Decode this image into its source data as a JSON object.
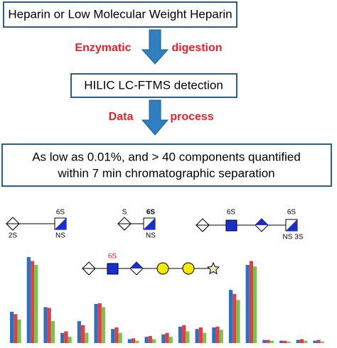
{
  "flow": {
    "step1": "Heparin or Low Molecular Weight Heparin",
    "label1a": "Enzymatic",
    "label1b": "digestion",
    "step2": "HILIC LC-FTMS detection",
    "label2a": "Data",
    "label2b": "process",
    "step3_line1": "As low as 0.01%, and  > 40 components quantified",
    "step3_line2": "within 7 min chromatographic separation"
  },
  "structures": [
    {
      "top": "6S",
      "left_bottom": "2S",
      "bottom": "NS"
    },
    {
      "left_top": "S",
      "top": "6S",
      "bottom": "NS"
    },
    {
      "mid_top": "6S",
      "top": "6S",
      "bottom": "NS 3S"
    },
    {
      "top": "6S"
    }
  ],
  "chart_data": {
    "type": "bar",
    "categories": [
      null,
      null,
      null,
      null,
      null,
      null,
      null,
      null,
      null,
      null,
      null,
      null,
      null,
      null,
      null,
      null,
      null,
      null,
      null
    ],
    "series": [
      {
        "color": "#2f6fc0",
        "values": [
          40,
          110,
          46,
          13,
          28,
          50,
          18,
          5,
          8,
          11,
          21,
          18,
          20,
          68,
          100,
          4,
          3,
          4,
          3
        ]
      },
      {
        "color": "#e04040",
        "values": [
          37,
          105,
          45,
          15,
          23,
          51,
          20,
          6,
          9,
          13,
          23,
          20,
          21,
          63,
          105,
          4,
          3,
          5,
          4
        ]
      },
      {
        "color": "#7cc050",
        "values": [
          30,
          100,
          28,
          8,
          13,
          46,
          13,
          3,
          5,
          8,
          15,
          13,
          17,
          55,
          98,
          3,
          2,
          3,
          2
        ]
      }
    ],
    "ylim": [
      0,
      120
    ]
  }
}
